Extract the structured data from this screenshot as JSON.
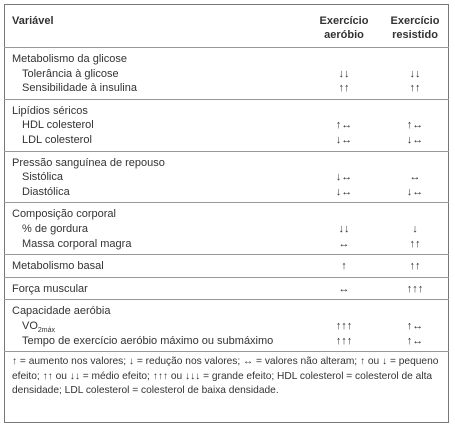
{
  "header": {
    "columns": [
      "Variável",
      "Exercício aeróbio",
      "Exercício resistido"
    ]
  },
  "table": {
    "groups": [
      {
        "title": "Metabolismo da glicose",
        "rows": [
          {
            "label": "Tolerância à glicose",
            "aerobic": "↓↓",
            "resistance": "↓↓"
          },
          {
            "label": "Sensibilidade à insulina",
            "aerobic": "↑↑",
            "resistance": "↑↑"
          }
        ]
      },
      {
        "title": "Lipídios séricos",
        "rows": [
          {
            "label": "HDL colesterol",
            "aerobic": "↑↔",
            "resistance": "↑↔"
          },
          {
            "label": "LDL colesterol",
            "aerobic": "↓↔",
            "resistance": "↓↔"
          }
        ]
      },
      {
        "title": "Pressão sanguínea de repouso",
        "rows": [
          {
            "label": "Sistólica",
            "aerobic": "↓↔",
            "resistance": "↔"
          },
          {
            "label": "Diastólica",
            "aerobic": "↓↔",
            "resistance": "↓↔"
          }
        ]
      },
      {
        "title": "Composição corporal",
        "rows": [
          {
            "label": "% de gordura",
            "aerobic": "↓↓",
            "resistance": "↓"
          },
          {
            "label": "Massa corporal magra",
            "aerobic": "↔",
            "resistance": "↑↑"
          }
        ]
      },
      {
        "title": "Metabolismo basal",
        "aerobic": "↑",
        "resistance": "↑↑"
      },
      {
        "title": "Força muscular",
        "aerobic": "↔",
        "resistance": "↑↑↑"
      },
      {
        "title": "Capacidade aeróbia",
        "rows": [
          {
            "label": "VO",
            "sub": "2máx",
            "aerobic": "↑↑↑",
            "resistance": "↑↔"
          },
          {
            "label": "Tempo de exercício aeróbio máximo ou submáximo",
            "aerobic": "↑↑↑",
            "resistance": "↑↔"
          }
        ]
      }
    ]
  },
  "footnote": "↑ = aumento nos valores; ↓ = redução nos valores; ↔ = valores não alteram; ↑ ou ↓ = pequeno efeito; ↑↑ ou ↓↓ = médio efeito; ↑↑↑ ou ↓↓↓ = grande efeito; HDL colesterol = colesterol de alta densidade; LDL colesterol = colesterol de baixa densidade."
}
